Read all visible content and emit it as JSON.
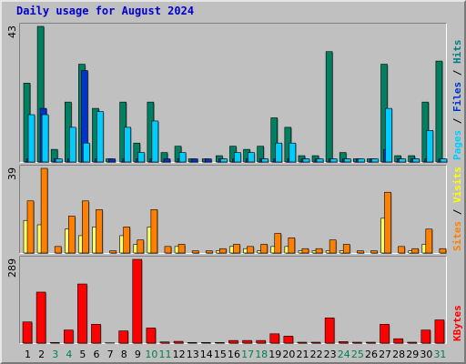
{
  "chart_data": {
    "type": "bar",
    "title": "Daily usage for August 2024",
    "categories": [
      "1",
      "2",
      "3",
      "4",
      "5",
      "6",
      "7",
      "8",
      "9",
      "10",
      "11",
      "12",
      "13",
      "14",
      "15",
      "16",
      "17",
      "18",
      "19",
      "20",
      "21",
      "22",
      "23",
      "24",
      "25",
      "26",
      "27",
      "28",
      "29",
      "30",
      "31"
    ],
    "weekend_days": [
      3,
      4,
      10,
      11,
      17,
      18,
      24,
      25,
      31
    ],
    "panels": [
      {
        "max_label": "43",
        "ymax": 43,
        "side_labels": [
          {
            "text": "Pages",
            "color": "#00ccff"
          },
          {
            "text": " / ",
            "color": "#000000"
          },
          {
            "text": "Files",
            "color": "#0033cc"
          },
          {
            "text": " / ",
            "color": "#000000"
          },
          {
            "text": "Hits",
            "color": "#008080"
          }
        ],
        "series": [
          {
            "name": "Hits",
            "color": "#008060",
            "values": [
              25,
              43,
              4,
              19,
              31,
              17,
              1,
              19,
              6,
              19,
              3,
              5,
              1,
              1,
              2,
              5,
              4,
              5,
              14,
              11,
              2,
              2,
              35,
              3,
              1,
              1,
              31,
              2,
              2,
              19,
              32
            ]
          },
          {
            "name": "Files",
            "color": "#0033cc",
            "values": [
              1,
              17,
              1,
              1,
              29,
              1,
              1,
              1,
              1,
              1,
              1,
              1,
              1,
              1,
              1,
              1,
              1,
              1,
              1,
              1,
              1,
              1,
              1,
              1,
              1,
              1,
              4,
              1,
              1,
              1,
              1
            ]
          },
          {
            "name": "Pages",
            "color": "#00ccff",
            "values": [
              15,
              15,
              1,
              11,
              6,
              16,
              0,
              11,
              3,
              13,
              0,
              3,
              0,
              0,
              1,
              3,
              3,
              1,
              6,
              6,
              1,
              1,
              1,
              1,
              1,
              1,
              17,
              1,
              1,
              10,
              1
            ]
          }
        ]
      },
      {
        "max_label": "39",
        "ymax": 39,
        "side_labels": [
          {
            "text": "Sites",
            "color": "#ff8000"
          },
          {
            "text": " / ",
            "color": "#000000"
          },
          {
            "text": "Visits",
            "color": "#ffff00"
          }
        ],
        "series": [
          {
            "name": "Visits",
            "color": "#ffff66",
            "values": [
              15,
              13,
              0,
              11,
              8,
              12,
              0,
              8,
              4,
              12,
              0,
              3,
              0,
              0,
              1,
              3,
              2,
              1,
              3,
              3,
              1,
              1,
              1,
              1,
              0,
              0,
              16,
              0,
              1,
              4,
              0
            ]
          },
          {
            "name": "Sites",
            "color": "#ff8000",
            "values": [
              24,
              39,
              3,
              17,
              24,
              20,
              1,
              12,
              6,
              20,
              3,
              4,
              1,
              1,
              2,
              4,
              3,
              4,
              9,
              7,
              2,
              2,
              6,
              4,
              1,
              1,
              28,
              3,
              2,
              11,
              2
            ]
          }
        ]
      },
      {
        "max_label": "289",
        "ymax": 289,
        "side_labels": [
          {
            "text": "KBytes",
            "color": "#ff0000"
          }
        ],
        "series": [
          {
            "name": "KBytes",
            "color": "#ff0000",
            "values": [
              73,
              176,
              2,
              45,
              204,
              65,
              1,
              42,
              289,
              52,
              4,
              6,
              2,
              2,
              2,
              9,
              9,
              9,
              32,
              24,
              3,
              3,
              87,
              5,
              3,
              3,
              65,
              15,
              3,
              45,
              80
            ]
          }
        ]
      }
    ]
  },
  "colors": {
    "background": "#c0c0c0",
    "title": "#0000cc",
    "weekday_label": "#000000",
    "weekend_label": "#00804a"
  }
}
